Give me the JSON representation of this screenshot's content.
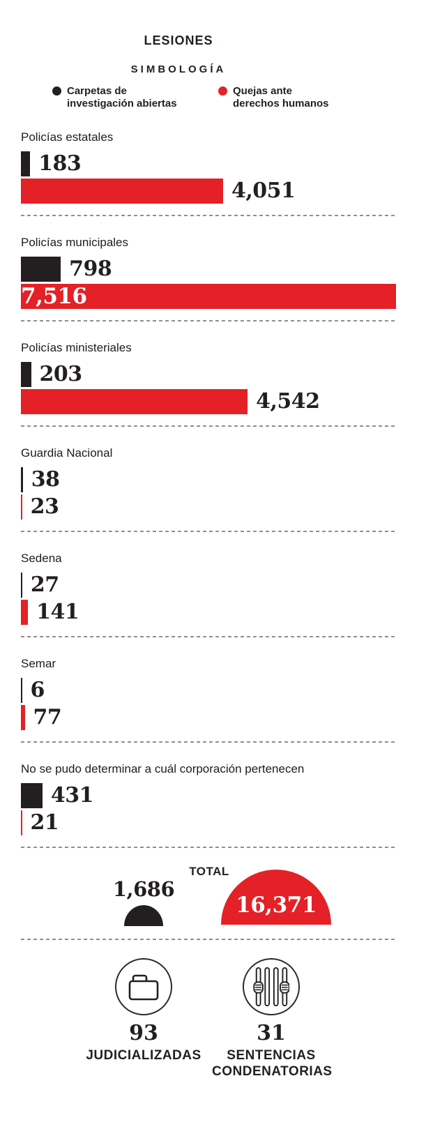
{
  "title": "LESIONES",
  "legend": {
    "title": "SIMBOLOGÍA",
    "items": [
      {
        "label": "Carpetas de investigación abiertas",
        "color": "#231f20"
      },
      {
        "label": "Quejas ante derechos humanos",
        "color": "#e32127"
      }
    ]
  },
  "chart_data": {
    "type": "bar",
    "orientation": "horizontal",
    "title": "LESIONES",
    "categories": [
      "Policías estatales",
      "Policías municipales",
      "Policías ministeriales",
      "Guardia Nacional",
      "Sedena",
      "Semar",
      "No se pudo determinar a cuál corporación pertenecen"
    ],
    "series": [
      {
        "name": "Carpetas de investigación abiertas",
        "color": "#231f20",
        "values": [
          183,
          798,
          203,
          38,
          27,
          6,
          431
        ],
        "labels": [
          "183",
          "798",
          "203",
          "38",
          "27",
          "6",
          "431"
        ]
      },
      {
        "name": "Quejas ante derechos humanos",
        "color": "#e32127",
        "values": [
          4051,
          7516,
          4542,
          23,
          141,
          77,
          21
        ],
        "labels": [
          "4,051",
          "7,516",
          "4,542",
          "23",
          "141",
          "77",
          "21"
        ]
      }
    ],
    "xlim": [
      0,
      7516
    ],
    "grid": false,
    "legend_position": "top",
    "totals": {
      "label": "TOTAL",
      "carpetas": 1686,
      "carpetas_label": "1,686",
      "quejas": 16371,
      "quejas_label": "16,371"
    }
  },
  "footer": [
    {
      "icon": "folder-icon",
      "value": "93",
      "label": "JUDICIALIZADAS"
    },
    {
      "icon": "jail-bars-icon",
      "value": "31",
      "label": "SENTENCIAS CONDENATORIAS"
    }
  ],
  "colors": {
    "carpetas": "#231f20",
    "quejas": "#e32127",
    "separator": "#8f8f8f"
  }
}
